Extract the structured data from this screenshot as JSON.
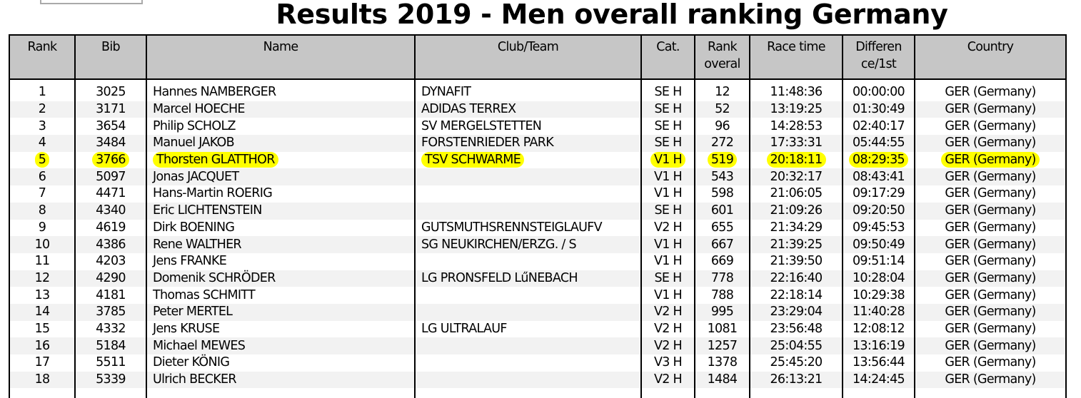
{
  "title": "Results 2019 - Men overall ranking Germany",
  "highlight_color": "#ffff00",
  "highlighted_rank": "5",
  "columns": [
    "Rank",
    "Bib",
    "Name",
    "Club/Team",
    "Cat.",
    "Rank overal",
    "Race time",
    "Differen ce/1st",
    "Country"
  ],
  "rows": [
    [
      "1",
      "3025",
      "Hannes NAMBERGER",
      "DYNAFIT",
      "SE H",
      "12",
      "11:48:36",
      "00:00:00",
      "GER (Germany)"
    ],
    [
      "2",
      "3171",
      "Marcel HOECHE",
      "ADIDAS TERREX",
      "SE H",
      "52",
      "13:19:25",
      "01:30:49",
      "GER (Germany)"
    ],
    [
      "3",
      "3654",
      "Philip SCHOLZ",
      "SV MERGELSTETTEN",
      "SE H",
      "96",
      "14:28:53",
      "02:40:17",
      "GER (Germany)"
    ],
    [
      "4",
      "3484",
      "Manuel JAKOB",
      "FORSTENRIEDER PARK",
      "SE H",
      "272",
      "17:33:31",
      "05:44:55",
      "GER (Germany)"
    ],
    [
      "5",
      "3766",
      "Thorsten GLATTHOR",
      "TSV SCHWARME",
      "V1 H",
      "519",
      "20:18:11",
      "08:29:35",
      "GER (Germany)"
    ],
    [
      "6",
      "5097",
      "Jonas JACQUET",
      "",
      "V1 H",
      "543",
      "20:32:17",
      "08:43:41",
      "GER (Germany)"
    ],
    [
      "7",
      "4471",
      "Hans-Martin ROERIG",
      "",
      "V1 H",
      "598",
      "21:06:05",
      "09:17:29",
      "GER (Germany)"
    ],
    [
      "8",
      "4340",
      "Eric LICHTENSTEIN",
      "",
      "SE H",
      "601",
      "21:09:26",
      "09:20:50",
      "GER (Germany)"
    ],
    [
      "9",
      "4619",
      "Dirk BOENING",
      "GUTSMUTHSRENNSTEIGLAUFV",
      "V2 H",
      "655",
      "21:34:29",
      "09:45:53",
      "GER (Germany)"
    ],
    [
      "10",
      "4386",
      "Rene WALTHER",
      "SG NEUKIRCHEN/ERZG. / S",
      "V1 H",
      "667",
      "21:39:25",
      "09:50:49",
      "GER (Germany)"
    ],
    [
      "11",
      "4203",
      "Jens FRANKE",
      "",
      "V1 H",
      "669",
      "21:39:50",
      "09:51:14",
      "GER (Germany)"
    ],
    [
      "12",
      "4290",
      "Domenik SCHRÖDER",
      "LG PRONSFELD LűNEBACH",
      "SE H",
      "778",
      "22:16:40",
      "10:28:04",
      "GER (Germany)"
    ],
    [
      "13",
      "4181",
      "Thomas SCHMITT",
      "",
      "V1 H",
      "788",
      "22:18:14",
      "10:29:38",
      "GER (Germany)"
    ],
    [
      "14",
      "3785",
      "Peter MERTEL",
      "",
      "V2 H",
      "995",
      "23:29:04",
      "11:40:28",
      "GER (Germany)"
    ],
    [
      "15",
      "4332",
      "Jens KRUSE",
      "LG ULTRALAUF",
      "V2 H",
      "1081",
      "23:56:48",
      "12:08:12",
      "GER (Germany)"
    ],
    [
      "16",
      "5184",
      "Michael MEWES",
      "",
      "V2 H",
      "1257",
      "25:04:55",
      "13:16:19",
      "GER (Germany)"
    ],
    [
      "17",
      "5511",
      "Dieter KÖNIG",
      "",
      "V3 H",
      "1378",
      "25:45:20",
      "13:56:44",
      "GER (Germany)"
    ],
    [
      "18",
      "5339",
      "Ulrich BECKER",
      "",
      "V2 H",
      "1484",
      "26:13:21",
      "14:24:45",
      "GER (Germany)"
    ]
  ]
}
